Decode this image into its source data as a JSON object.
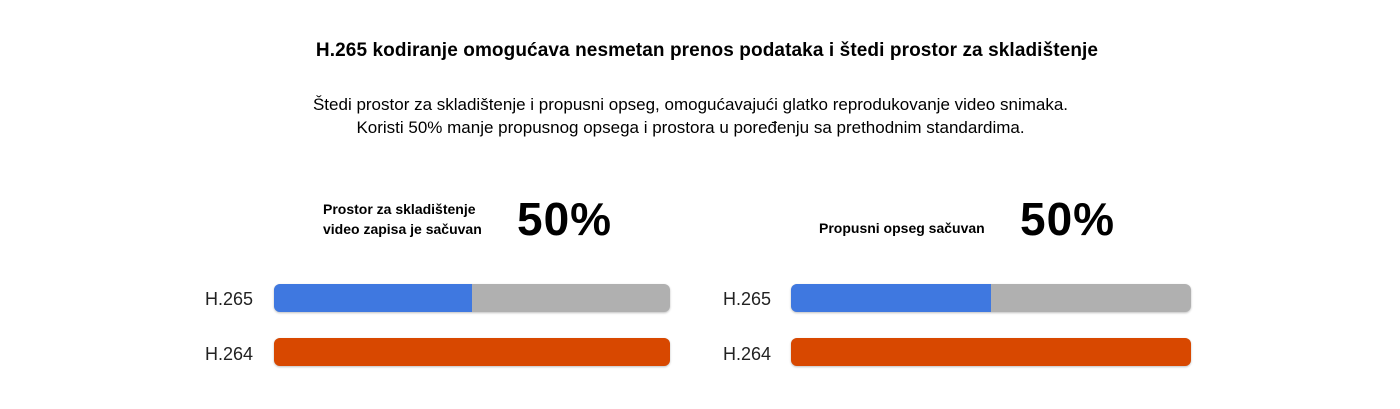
{
  "title": "H.265 kodiranje omogućava nesmetan prenos podataka i štedi prostor za skladištenje",
  "subtitle_line1": "Štedi prostor za skladištenje i propusni opseg, omogućavajući glatko reprodukovanje video snimaka.",
  "subtitle_line2": "Koristi 50% manje propusnog opsega i prostora u poređenju sa prethodnim standardima.",
  "colors": {
    "h265": "#3f78e0",
    "h264": "#d84800",
    "track": "#b0b0b0"
  },
  "chart_data": [
    {
      "type": "bar",
      "orientation": "horizontal",
      "stat_label_line1": "Prostor za skladištenje",
      "stat_label_line2": "video zapisa je sačuvan",
      "stat_value": "50%",
      "categories": [
        "H.265",
        "H.264"
      ],
      "values": [
        50,
        100
      ],
      "xlim": [
        0,
        100
      ]
    },
    {
      "type": "bar",
      "orientation": "horizontal",
      "stat_label_line1": "Propusni opseg sačuvan",
      "stat_label_line2": "",
      "stat_value": "50%",
      "categories": [
        "H.265",
        "H.264"
      ],
      "values": [
        50,
        100
      ],
      "xlim": [
        0,
        100
      ]
    }
  ]
}
